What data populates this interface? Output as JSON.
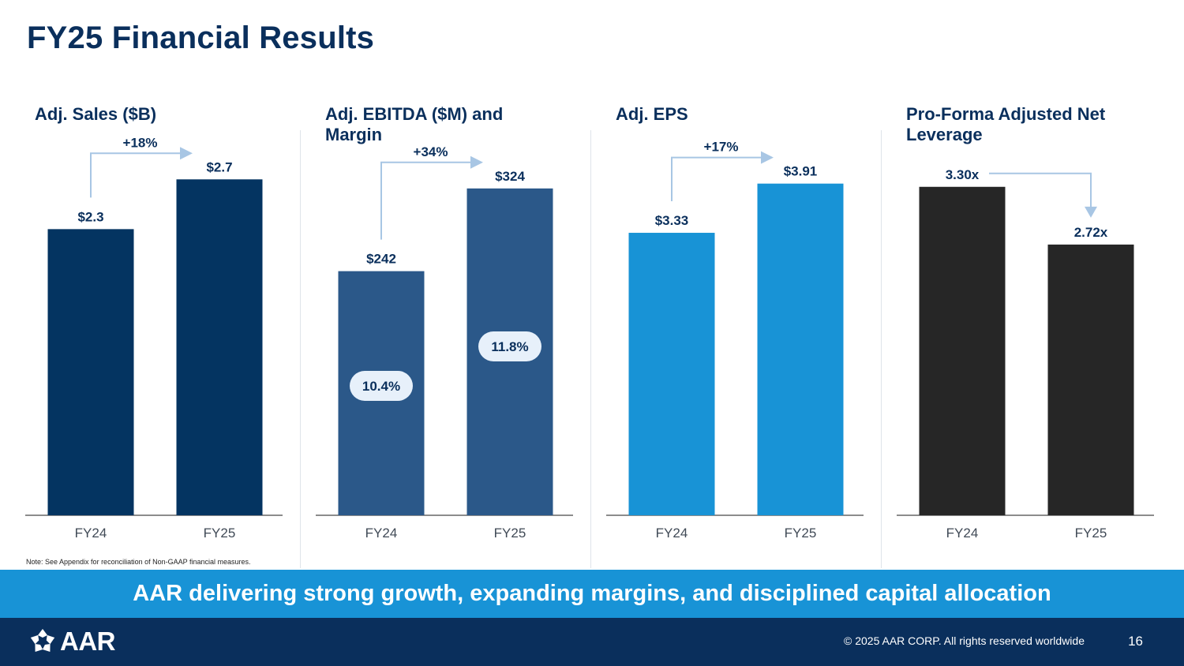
{
  "title": "FY25 Financial Results",
  "colors": {
    "navy": "#0a2f5c",
    "sales_bar": "#043461",
    "ebitda_bar": "#2b5889",
    "eps_bar": "#1893d6",
    "leverage_bar": "#262626",
    "arrow": "#a8c6e4",
    "banner": "#1893d6"
  },
  "chart_data": [
    {
      "type": "bar",
      "title": "Adj. Sales ($B)",
      "categories": [
        "FY24",
        "FY25"
      ],
      "values": [
        2.3,
        2.7
      ],
      "labels": [
        "$2.3",
        "$2.7"
      ],
      "change": "+18%",
      "ylim": [
        0,
        3.0
      ]
    },
    {
      "type": "bar",
      "title": "Adj. EBITDA ($M) and Margin",
      "categories": [
        "FY24",
        "FY25"
      ],
      "values": [
        242,
        324
      ],
      "labels": [
        "$242",
        "$324"
      ],
      "margins": [
        "10.4%",
        "11.8%"
      ],
      "change": "+34%",
      "ylim": [
        0,
        370
      ]
    },
    {
      "type": "bar",
      "title": "Adj. EPS",
      "categories": [
        "FY24",
        "FY25"
      ],
      "values": [
        3.33,
        3.91
      ],
      "labels": [
        "$3.33",
        "$3.91"
      ],
      "change": "+17%",
      "ylim": [
        0,
        4.4
      ]
    },
    {
      "type": "bar",
      "title": "Pro-Forma Adjusted Net Leverage",
      "categories": [
        "FY24",
        "FY25"
      ],
      "values": [
        3.3,
        2.72
      ],
      "labels": [
        "3.30x",
        "2.72x"
      ],
      "change": "",
      "ylim": [
        0,
        3.75
      ]
    }
  ],
  "note": "Note: See Appendix for reconciliation of Non-GAAP financial measures.",
  "banner": "AAR delivering strong growth, expanding margins, and disciplined capital allocation",
  "footer": {
    "logo_text": "AAR",
    "copyright": "© 2025 AAR CORP. All rights reserved worldwide",
    "page": "16"
  }
}
